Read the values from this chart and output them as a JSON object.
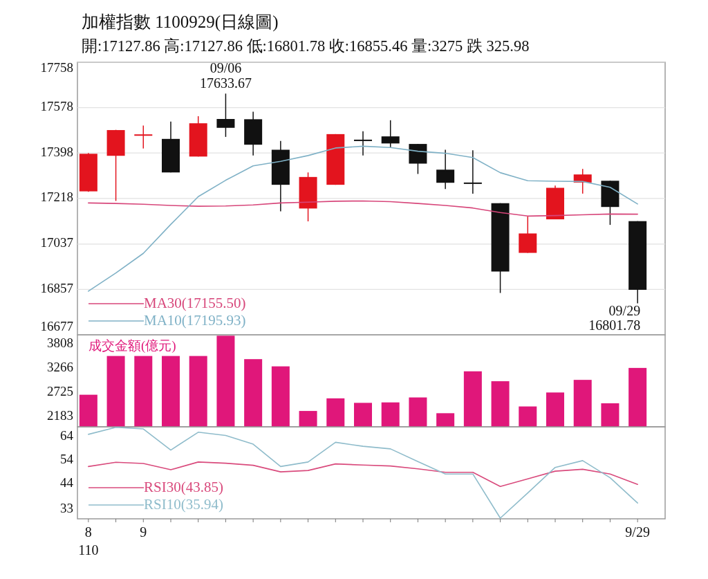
{
  "chart_data": [
    {
      "type": "candlestick",
      "title": "加權指數 1100929(日線圖)",
      "subtitle": "開:17127.86 高:17127.86 低:16801.78 收:16855.46 量:3275 跌 325.98",
      "categories": [
        null,
        null,
        null,
        null,
        null,
        null,
        null,
        null,
        null,
        null,
        null,
        null,
        null,
        null,
        null,
        null,
        null,
        null,
        null,
        null,
        null
      ],
      "ohlc": [
        [
          17246,
          17398,
          17244,
          17395
        ],
        [
          17387,
          17490,
          17208,
          17489
        ],
        [
          17470,
          17507,
          17416,
          17472
        ],
        [
          17454,
          17523,
          17321,
          17321
        ],
        [
          17384,
          17544,
          17384,
          17516
        ],
        [
          17533,
          17633.67,
          17462,
          17498
        ],
        [
          17532,
          17562,
          17388,
          17431
        ],
        [
          17411,
          17446,
          17167,
          17272
        ],
        [
          17178,
          17321,
          17127,
          17303
        ],
        [
          17272,
          17473,
          17272,
          17473
        ],
        [
          17451,
          17484,
          17388,
          17449
        ],
        [
          17464,
          17528,
          17420,
          17436
        ],
        [
          17434,
          17434,
          17315,
          17356
        ],
        [
          17332,
          17411,
          17255,
          17280
        ],
        [
          17281,
          17409,
          17237,
          17279
        ],
        [
          17199,
          17199,
          16843,
          16928
        ],
        [
          17002,
          17146,
          17002,
          17079
        ],
        [
          17135,
          17269,
          17135,
          17260
        ],
        [
          17281,
          17335,
          17237,
          17313
        ],
        [
          17288,
          17288,
          17113,
          17184
        ],
        [
          17127.86,
          17127.86,
          16801.78,
          16855.46
        ]
      ],
      "colors": [
        "#e3141e",
        "#e3141e",
        "#e3141e",
        "#111111",
        "#e3141e",
        "#111111",
        "#111111",
        "#111111",
        "#e3141e",
        "#e3141e",
        "#111111",
        "#111111",
        "#111111",
        "#111111",
        "#111111",
        "#111111",
        "#e3141e",
        "#e3141e",
        "#e3141e",
        "#111111",
        "#111111"
      ],
      "series": [
        {
          "name": "MA30(17155.50)",
          "type": "line",
          "color": "#d7467a",
          "values": [
            17200,
            17198,
            17195,
            17190,
            17187,
            17188,
            17192,
            17200,
            17203,
            17207,
            17208,
            17205,
            17198,
            17190,
            17180,
            17162,
            17148,
            17150,
            17153,
            17156,
            17155.5
          ]
        },
        {
          "name": "MA10(17195.93)",
          "type": "line",
          "color": "#7fb1c6",
          "values": [
            16850,
            16922,
            17000,
            17115,
            17225,
            17290,
            17347,
            17365,
            17388,
            17418,
            17425,
            17420,
            17405,
            17397,
            17380,
            17320,
            17288,
            17286,
            17285,
            17262,
            17195.93
          ]
        }
      ],
      "ylim": [
        16677,
        17758
      ],
      "yticks": [
        16677,
        16857,
        17037,
        17218,
        17398,
        17578,
        17758
      ],
      "grid": "y",
      "legend": "bottom left",
      "tick_labels": "y",
      "annotations": [
        {
          "text": "09/06",
          "y": 17633.67
        },
        {
          "text": "17633.67",
          "y": 17633.67
        },
        "09/29",
        "16801.78"
      ]
    },
    {
      "type": "bar",
      "title": "成交金額(億元)",
      "categories": [
        null,
        null,
        null,
        null,
        null,
        null,
        null,
        null,
        null,
        null,
        null,
        null,
        null,
        null,
        null,
        null,
        null,
        null,
        null,
        null,
        null
      ],
      "values": [
        2680,
        3540,
        3540,
        3540,
        3540,
        3990,
        3470,
        3310,
        2320,
        2600,
        2500,
        2510,
        2620,
        2270,
        3200,
        2980,
        2420,
        2730,
        3010,
        2490,
        3275
      ],
      "color": "#e0177a",
      "ylim": [
        1968,
        4010
      ],
      "yticks": [
        2183,
        2725,
        3266,
        3808
      ],
      "tick_labels": "y"
    },
    {
      "type": "line",
      "categories": [
        "8",
        null,
        "9",
        null,
        null,
        null,
        null,
        null,
        null,
        null,
        null,
        null,
        null,
        null,
        null,
        null,
        null,
        null,
        null,
        null,
        "9/29"
      ],
      "series": [
        {
          "name": "RSI30(43.85)",
          "color": "#d94a7c",
          "values": [
            51.5,
            53.3,
            52.8,
            50.1,
            53.4,
            52.9,
            52.0,
            49.2,
            49.8,
            52.6,
            52.1,
            51.7,
            50.5,
            49.0,
            49.0,
            43.0,
            46.2,
            49.5,
            50.3,
            48.3,
            43.85
          ]
        },
        {
          "name": "RSI10(35.94)",
          "color": "#8fbccb",
          "values": [
            65.2,
            68.2,
            67.5,
            58.5,
            66.1,
            64.7,
            61.0,
            51.5,
            53.4,
            61.8,
            60.1,
            59.0,
            53.6,
            48.3,
            48.3,
            29.5,
            40.2,
            51.1,
            54.0,
            46.7,
            35.94
          ]
        }
      ],
      "ylim": [
        29.2,
        68.4
      ],
      "yticks": [
        33,
        44,
        54,
        64
      ],
      "legend": "bottom left",
      "annotations": [
        "110"
      ]
    }
  ]
}
